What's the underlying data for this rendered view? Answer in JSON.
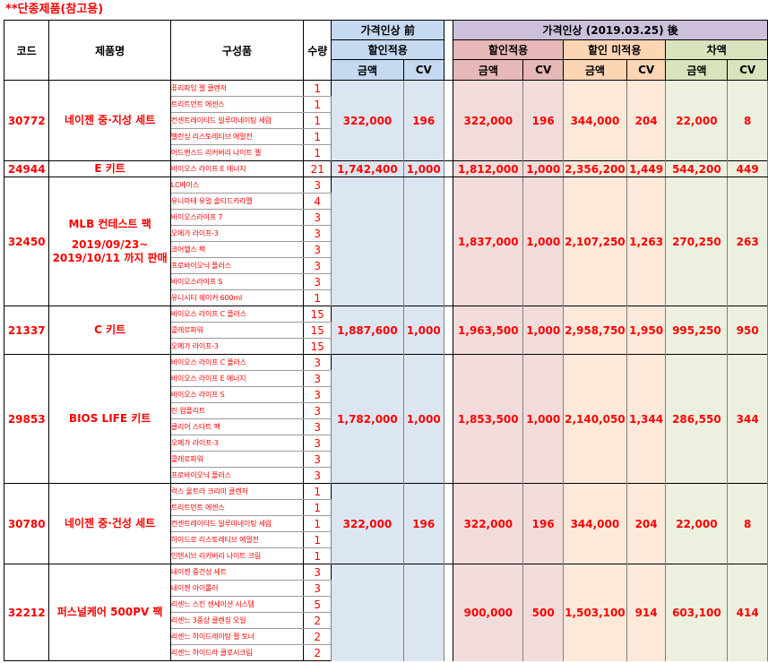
{
  "title": "**단종제품(참고용)",
  "header": {
    "code": "코드",
    "product_name": "제품명",
    "components": "구성품",
    "quantity": "수량",
    "before_group": "가격인상 前",
    "after_group": "가격인상 (2019.03.25) 後",
    "before_discount": "할인적용",
    "after_discount": "할인적용",
    "after_no_discount": "할인 미적용",
    "difference": "차액",
    "amount": "금액",
    "cv": "CV"
  },
  "products": [
    {
      "code": "30772",
      "name_lines": [
        "네이젠 중·지성 세트"
      ],
      "components": [
        {
          "name": "퓨리파잉 젤 클렌저",
          "qty": "1"
        },
        {
          "name": "트리트먼트 에센스",
          "qty": "1"
        },
        {
          "name": "컨센트레이티드 일루미네이팅 세럼",
          "qty": "1"
        },
        {
          "name": "밸런싱 리스토레티브 에멀전",
          "qty": "1"
        },
        {
          "name": "어드밴스드 리커버리 나이트 젤",
          "qty": "1"
        }
      ],
      "before_amount": "322,000",
      "before_cv": "196",
      "after_amount": "322,000",
      "after_cv": "196",
      "nodisc_amount": "344,000",
      "nodisc_cv": "204",
      "diff_amount": "22,000",
      "diff_cv": "8"
    },
    {
      "code": "24944",
      "name_lines": [
        "E 키트"
      ],
      "components": [
        {
          "name": "바이오스 라이프 E 에너지",
          "qty": "21"
        }
      ],
      "before_amount": "1,742,400",
      "before_cv": "1,000",
      "after_amount": "1,812,000",
      "after_cv": "1,000",
      "nodisc_amount": "2,356,200",
      "nodisc_cv": "1,449",
      "diff_amount": "544,200",
      "diff_cv": "449"
    },
    {
      "code": "32450",
      "name_lines": [
        "MLB 컨테스트 팩",
        "",
        "2019/09/23~",
        "2019/10/11 까지 판매"
      ],
      "components": [
        {
          "name": "LC베이스",
          "qty": "3"
        },
        {
          "name": "유니마테 유얼 솔티드카라멜",
          "qty": "4"
        },
        {
          "name": "바이오스라이프 7",
          "qty": "3"
        },
        {
          "name": "오메가 라이프-3",
          "qty": "3"
        },
        {
          "name": "코어헬스 팩",
          "qty": "3"
        },
        {
          "name": "프로바이오닉 플러스",
          "qty": "3"
        },
        {
          "name": "바이오스라이프 S",
          "qty": "3"
        },
        {
          "name": "유니시티 쉐이커 600ml",
          "qty": "1"
        }
      ],
      "before_amount": "",
      "before_cv": "",
      "after_amount": "1,837,000",
      "after_cv": "1,000",
      "nodisc_amount": "2,107,250",
      "nodisc_cv": "1,263",
      "diff_amount": "270,250",
      "diff_cv": "263"
    },
    {
      "code": "21337",
      "name_lines": [
        "C 키트"
      ],
      "components": [
        {
          "name": "바이오스 라이프 C 플러스",
          "qty": "15"
        },
        {
          "name": "콜레로파워",
          "qty": "15"
        },
        {
          "name": "오메가 라이프-3",
          "qty": "15"
        }
      ],
      "before_amount": "1,887,600",
      "before_cv": "1,000",
      "after_amount": "1,963,500",
      "after_cv": "1,000",
      "nodisc_amount": "2,958,750",
      "nodisc_cv": "1,950",
      "diff_amount": "995,250",
      "diff_cv": "950"
    },
    {
      "code": "29853",
      "name_lines": [
        "BIOS LIFE 키트"
      ],
      "components": [
        {
          "name": "바이오스 라이프 C 플러스",
          "qty": "3"
        },
        {
          "name": "바이오스 라이프 E 에너지",
          "qty": "3"
        },
        {
          "name": "바이오스 라이프 S",
          "qty": "3"
        },
        {
          "name": "린 컴플리트",
          "qty": "3"
        },
        {
          "name": "클리어 스타트 팩",
          "qty": "3"
        },
        {
          "name": "오메가 라이프-3",
          "qty": "3"
        },
        {
          "name": "콜레로파워",
          "qty": "3"
        },
        {
          "name": "프로바이오닉 플러스",
          "qty": "3"
        }
      ],
      "before_amount": "1,782,000",
      "before_cv": "1,000",
      "after_amount": "1,853,500",
      "after_cv": "1,000",
      "nodisc_amount": "2,140,050",
      "nodisc_cv": "1,344",
      "diff_amount": "286,550",
      "diff_cv": "344"
    },
    {
      "code": "30780",
      "name_lines": [
        "네이젠 중·건성 세트"
      ],
      "components": [
        {
          "name": "럭스 울트라 크리미 클렌저",
          "qty": "1"
        },
        {
          "name": "트리트먼트 에센스",
          "qty": "1"
        },
        {
          "name": "컨센트레이티드 일루미네이팅 세럼",
          "qty": "1"
        },
        {
          "name": "하이드로 리스토레티브 에멀전",
          "qty": "1"
        },
        {
          "name": "인텐시브 리커버리 나이트 크림",
          "qty": "1"
        }
      ],
      "before_amount": "322,000",
      "before_cv": "196",
      "after_amount": "322,000",
      "after_cv": "196",
      "nodisc_amount": "344,000",
      "nodisc_cv": "204",
      "diff_amount": "22,000",
      "diff_cv": "8"
    },
    {
      "code": "32212",
      "name_lines": [
        "퍼스널케어 500PV 팩"
      ],
      "components": [
        {
          "name": "네이젠 중건성 세트",
          "qty": "3"
        },
        {
          "name": "네이젠 아이롤러",
          "qty": "3"
        },
        {
          "name": "리센느 스킨 센세이션 시스템",
          "qty": "5"
        },
        {
          "name": "리센느 3중상 클렌징 오일",
          "qty": "2"
        },
        {
          "name": "리센느 하이드레이팅 젤 토너",
          "qty": "2"
        },
        {
          "name": "리센느 하이드라 클로시크림",
          "qty": "2"
        }
      ],
      "before_amount": "",
      "before_cv": "",
      "after_amount": "900,000",
      "after_cv": "500",
      "nodisc_amount": "1,503,100",
      "nodisc_cv": "914",
      "diff_amount": "603,100",
      "diff_cv": "414"
    }
  ]
}
